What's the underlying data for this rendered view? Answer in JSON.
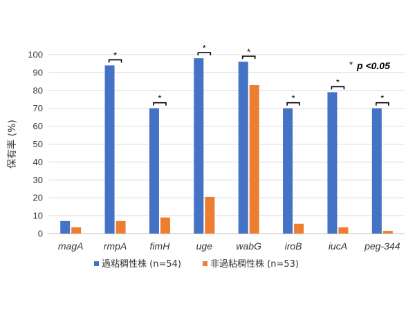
{
  "chart_data": {
    "type": "bar",
    "categories": [
      "magA",
      "rmpA",
      "fimH",
      "uge",
      "wabG",
      "iroB",
      "iucA",
      "peg-344"
    ],
    "series": [
      {
        "name": "過粘稠性株 (n=54)",
        "color": "#4472C4",
        "values": [
          7,
          94,
          70,
          98,
          96,
          70,
          79,
          70
        ]
      },
      {
        "name": "非過粘稠性株 (n=53)",
        "color": "#ED7D31",
        "values": [
          3.5,
          7,
          9,
          20.5,
          83,
          5.5,
          3.5,
          1.5
        ]
      }
    ],
    "significant": [
      false,
      true,
      true,
      true,
      true,
      true,
      true,
      true
    ],
    "significance_marker": "*",
    "annotation": {
      "star": "*",
      "text": "p <0.05"
    },
    "ylabel": "保有率 (%)",
    "xlabel": "",
    "ylim": [
      0,
      100
    ],
    "yticks": [
      0,
      10,
      20,
      30,
      40,
      50,
      60,
      70,
      80,
      90,
      100
    ],
    "grid": true,
    "legend_position": "bottom"
  }
}
